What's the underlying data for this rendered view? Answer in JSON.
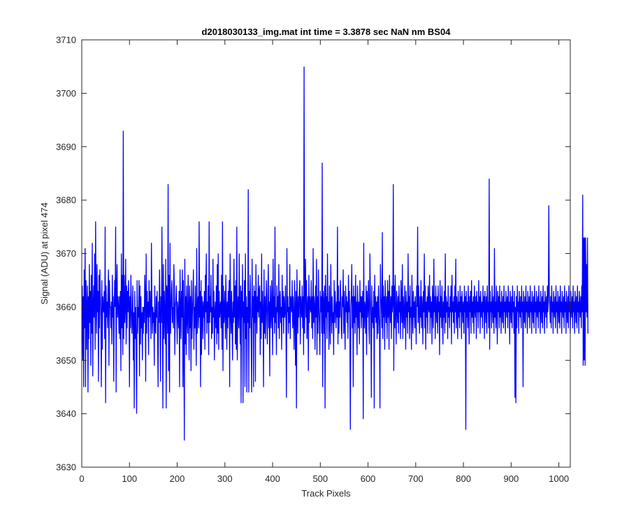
{
  "chart_data": {
    "type": "line",
    "title": "d2018030133_img.mat int time = 3.3878 sec  NaN nm BS04",
    "xlabel": "Track Pixels",
    "ylabel": "Signal (ADU) at pixel 474",
    "xlim": [
      0,
      1024
    ],
    "ylim": [
      3630,
      3710
    ],
    "xticks": [
      0,
      100,
      200,
      300,
      400,
      500,
      600,
      700,
      800,
      900,
      1000
    ],
    "yticks": [
      3630,
      3640,
      3650,
      3660,
      3670,
      3680,
      3690,
      3700,
      3710
    ],
    "grid": false,
    "legend": "none",
    "series": [
      {
        "color": "#0000ff",
        "x_start": 1,
        "x_step": 1,
        "values": [
          3664,
          3650,
          3662,
          3645,
          3667,
          3656,
          3671,
          3645,
          3665,
          3652,
          3660,
          3664,
          3644,
          3662,
          3654,
          3668,
          3657,
          3663,
          3649,
          3666,
          3655,
          3672,
          3647,
          3660,
          3664,
          3658,
          3670,
          3652,
          3676,
          3661,
          3655,
          3668,
          3659,
          3663,
          3646,
          3666,
          3656,
          3667,
          3662,
          3658,
          3645,
          3665,
          3652,
          3662,
          3660,
          3659,
          3663,
          3654,
          3675,
          3642,
          3664,
          3658,
          3661,
          3656,
          3663,
          3667,
          3649,
          3665,
          3660,
          3660,
          3656,
          3661,
          3653,
          3666,
          3658,
          3662,
          3646,
          3659,
          3665,
          3660,
          3675,
          3644,
          3663,
          3668,
          3658,
          3662,
          3660,
          3655,
          3662,
          3654,
          3663,
          3648,
          3670,
          3656,
          3666,
          3651,
          3693,
          3654,
          3666,
          3657,
          3660,
          3669,
          3653,
          3664,
          3656,
          3663,
          3659,
          3665,
          3661,
          3645,
          3662,
          3656,
          3666,
          3660,
          3655,
          3658,
          3664,
          3650,
          3659,
          3641,
          3663,
          3654,
          3660,
          3652,
          3640,
          3665,
          3655,
          3660,
          3658,
          3665,
          3647,
          3664,
          3653,
          3662,
          3656,
          3659,
          3650,
          3660,
          3655,
          3660,
          3657,
          3666,
          3662,
          3646,
          3670,
          3655,
          3663,
          3658,
          3661,
          3651,
          3665,
          3658,
          3663,
          3659,
          3654,
          3672,
          3661,
          3655,
          3660,
          3657,
          3659,
          3649,
          3664,
          3656,
          3655,
          3662,
          3658,
          3663,
          3654,
          3645,
          3661,
          3657,
          3667,
          3659,
          3646,
          3662,
          3657,
          3675,
          3660,
          3641,
          3668,
          3654,
          3663,
          3658,
          3653,
          3669,
          3641,
          3664,
          3662,
          3655,
          3683,
          3648,
          3666,
          3644,
          3672,
          3655,
          3658,
          3663,
          3665,
          3657,
          3660,
          3656,
          3668,
          3664,
          3651,
          3660,
          3661,
          3664,
          3658,
          3653,
          3661,
          3659,
          3656,
          3663,
          3645,
          3667,
          3660,
          3654,
          3663,
          3658,
          3667,
          3645,
          3665,
          3655,
          3635,
          3669,
          3653,
          3662,
          3651,
          3664,
          3658,
          3655,
          3666,
          3660,
          3650,
          3664,
          3656,
          3662,
          3648,
          3665,
          3654,
          3659,
          3662,
          3667,
          3652,
          3660,
          3656,
          3664,
          3657,
          3649,
          3671,
          3655,
          3661,
          3662,
          3656,
          3676,
          3658,
          3663,
          3645,
          3665,
          3651,
          3662,
          3660,
          3654,
          3661,
          3658,
          3663,
          3652,
          3666,
          3659,
          3670,
          3655,
          3661,
          3657,
          3664,
          3651,
          3676,
          3657,
          3662,
          3659,
          3666,
          3654,
          3660,
          3655,
          3669,
          3658,
          3663,
          3650,
          3659,
          3661,
          3656,
          3664,
          3653,
          3668,
          3655,
          3670,
          3652,
          3663,
          3658,
          3660,
          3661,
          3656,
          3666,
          3652,
          3676,
          3648,
          3664,
          3657,
          3659,
          3663,
          3654,
          3666,
          3660,
          3652,
          3661,
          3656,
          3663,
          3658,
          3665,
          3645,
          3670,
          3660,
          3655,
          3663,
          3658,
          3650,
          3661,
          3657,
          3669,
          3658,
          3664,
          3653,
          3665,
          3652,
          3675,
          3650,
          3660,
          3662,
          3656,
          3670,
          3659,
          3653,
          3664,
          3642,
          3663,
          3658,
          3668,
          3642,
          3661,
          3657,
          3665,
          3645,
          3670,
          3654,
          3662,
          3644,
          3660,
          3657,
          3682,
          3644,
          3663,
          3656,
          3666,
          3660,
          3654,
          3644,
          3669,
          3658,
          3662,
          3645,
          3664,
          3657,
          3663,
          3646,
          3668,
          3661,
          3655,
          3662,
          3659,
          3666,
          3658,
          3663,
          3664,
          3651,
          3661,
          3654,
          3670,
          3657,
          3663,
          3659,
          3645,
          3667,
          3655,
          3662,
          3654,
          3660,
          3665,
          3658,
          3653,
          3662,
          3668,
          3656,
          3661,
          3647,
          3664,
          3659,
          3656,
          3665,
          3660,
          3651,
          3669,
          3658,
          3662,
          3655,
          3675,
          3657,
          3660,
          3651,
          3664,
          3659,
          3662,
          3656,
          3668,
          3654,
          3661,
          3663,
          3657,
          3660,
          3652,
          3666,
          3658,
          3663,
          3655,
          3662,
          3658,
          3659,
          3664,
          3656,
          3643,
          3671,
          3659,
          3662,
          3655,
          3660,
          3657,
          3668,
          3654,
          3662,
          3661,
          3659,
          3665,
          3656,
          3662,
          3658,
          3652,
          3665,
          3660,
          3649,
          3663,
          3641,
          3667,
          3660,
          3655,
          3662,
          3658,
          3663,
          3665,
          3653,
          3662,
          3660,
          3658,
          3664,
          3656,
          3662,
          3651,
          3705,
          3655,
          3663,
          3669,
          3658,
          3665,
          3654,
          3660,
          3662,
          3648,
          3666,
          3657,
          3662,
          3660,
          3659,
          3665,
          3656,
          3662,
          3654,
          3671,
          3657,
          3662,
          3660,
          3652,
          3664,
          3658,
          3669,
          3651,
          3662,
          3655,
          3667,
          3660,
          3657,
          3651,
          3663,
          3659,
          3662,
          3655,
          3687,
          3645,
          3663,
          3661,
          3655,
          3664,
          3641,
          3666,
          3658,
          3662,
          3654,
          3670,
          3659,
          3661,
          3652,
          3664,
          3658,
          3653,
          3668,
          3660,
          3655,
          3662,
          3657,
          3659,
          3651,
          3665,
          3657,
          3663,
          3660,
          3656,
          3661,
          3658,
          3675,
          3653,
          3664,
          3655,
          3661,
          3658,
          3665,
          3662,
          3656,
          3654,
          3662,
          3660,
          3667,
          3655,
          3663,
          3658,
          3652,
          3664,
          3659,
          3662,
          3657,
          3661,
          3654,
          3666,
          3659,
          3663,
          3655,
          3637,
          3660,
          3662,
          3668,
          3656,
          3662,
          3645,
          3664,
          3657,
          3662,
          3655,
          3666,
          3658,
          3661,
          3651,
          3664,
          3660,
          3656,
          3661,
          3653,
          3665,
          3659,
          3662,
          3656,
          3662,
          3658,
          3663,
          3639,
          3672,
          3656,
          3661,
          3660,
          3655,
          3664,
          3651,
          3663,
          3658,
          3660,
          3665,
          3656,
          3653,
          3670,
          3662,
          3658,
          3643,
          3664,
          3657,
          3660,
          3656,
          3663,
          3641,
          3666,
          3658,
          3662,
          3657,
          3661,
          3654,
          3662,
          3655,
          3664,
          3659,
          3656,
          3641,
          3668,
          3662,
          3660,
          3656,
          3674,
          3654,
          3664,
          3658,
          3662,
          3652,
          3665,
          3660,
          3657,
          3662,
          3654,
          3665,
          3658,
          3663,
          3652,
          3666,
          3660,
          3657,
          3662,
          3654,
          3664,
          3659,
          3661,
          3683,
          3648,
          3664,
          3656,
          3666,
          3659,
          3653,
          3663,
          3660,
          3657,
          3662,
          3655,
          3664,
          3659,
          3661,
          3654,
          3665,
          3660,
          3657,
          3668,
          3654,
          3662,
          3659,
          3656,
          3664,
          3660,
          3652,
          3663,
          3658,
          3661,
          3655,
          3670,
          3659,
          3662,
          3654,
          3664,
          3658,
          3660,
          3652,
          3666,
          3660,
          3655,
          3663,
          3658,
          3661,
          3656,
          3662,
          3659,
          3653,
          3664,
          3660,
          3675,
          3657,
          3664,
          3659,
          3655,
          3662,
          3658,
          3665,
          3656,
          3662,
          3660,
          3653,
          3663,
          3659,
          3670,
          3656,
          3664,
          3652,
          3661,
          3658,
          3662,
          3655,
          3664,
          3660,
          3659,
          3666,
          3655,
          3662,
          3658,
          3661,
          3653,
          3664,
          3660,
          3656,
          3669,
          3659,
          3662,
          3654,
          3664,
          3660,
          3657,
          3662,
          3655,
          3664,
          3659,
          3661,
          3651,
          3665,
          3658,
          3662,
          3656,
          3664,
          3660,
          3653,
          3661,
          3658,
          3663,
          3655,
          3670,
          3657,
          3662,
          3659,
          3661,
          3654,
          3664,
          3658,
          3660,
          3656,
          3662,
          3659,
          3664,
          3653,
          3666,
          3659,
          3661,
          3657,
          3662,
          3655,
          3664,
          3659,
          3669,
          3656,
          3662,
          3660,
          3654,
          3663,
          3658,
          3661,
          3656,
          3664,
          3659,
          3662,
          3654,
          3663,
          3660,
          3657,
          3661,
          3655,
          3664,
          3659,
          3662,
          3637,
          3663,
          3658,
          3661,
          3656,
          3664,
          3660,
          3653,
          3662,
          3659,
          3663,
          3655,
          3665,
          3658,
          3661,
          3657,
          3662,
          3655,
          3664,
          3660,
          3658,
          3662,
          3654,
          3663,
          3659,
          3661,
          3656,
          3665,
          3659,
          3662,
          3655,
          3663,
          3660,
          3658,
          3661,
          3656,
          3664,
          3659,
          3662,
          3654,
          3663,
          3660,
          3657,
          3662,
          3655,
          3664,
          3659,
          3661,
          3656,
          3684,
          3652,
          3663,
          3659,
          3661,
          3656,
          3664,
          3660,
          3657,
          3662,
          3655,
          3671,
          3658,
          3661,
          3656,
          3664,
          3660,
          3653,
          3663,
          3659,
          3662,
          3656,
          3664,
          3658,
          3661,
          3655,
          3663,
          3660,
          3657,
          3662,
          3656,
          3664,
          3659,
          3661,
          3655,
          3663,
          3660,
          3658,
          3662,
          3656,
          3664,
          3659,
          3661,
          3653,
          3663,
          3660,
          3657,
          3662,
          3656,
          3664,
          3659,
          3661,
          3655,
          3663,
          3643,
          3660,
          3642,
          3662,
          3656,
          3664,
          3659,
          3661,
          3655,
          3663,
          3660,
          3658,
          3662,
          3656,
          3664,
          3659,
          3661,
          3645,
          3663,
          3660,
          3657,
          3662,
          3656,
          3664,
          3659,
          3661,
          3655,
          3663,
          3660,
          3658,
          3662,
          3656,
          3664,
          3659,
          3661,
          3655,
          3663,
          3660,
          3657,
          3662,
          3656,
          3664,
          3659,
          3661,
          3655,
          3663,
          3660,
          3658,
          3662,
          3656,
          3664,
          3659,
          3661,
          3655,
          3663,
          3660,
          3657,
          3662,
          3656,
          3664,
          3659,
          3661,
          3655,
          3663,
          3660,
          3658,
          3662,
          3656,
          3664,
          3659,
          3661,
          3679,
          3663,
          3660,
          3657,
          3662,
          3656,
          3664,
          3659,
          3661,
          3655,
          3663,
          3660,
          3658,
          3662,
          3656,
          3664,
          3659,
          3661,
          3655,
          3663,
          3660,
          3657,
          3662,
          3656,
          3664,
          3659,
          3661,
          3655,
          3663,
          3660,
          3658,
          3662,
          3656,
          3664,
          3659,
          3661,
          3655,
          3663,
          3660,
          3657,
          3662,
          3656,
          3664,
          3659,
          3661,
          3655,
          3663,
          3660,
          3658,
          3662,
          3656,
          3664,
          3659,
          3661,
          3655,
          3663,
          3660,
          3657,
          3662,
          3656,
          3664,
          3659,
          3661,
          3655,
          3663,
          3660,
          3658,
          3662,
          3656,
          3664,
          3659,
          3681,
          3649,
          3673,
          3650,
          3673,
          3649,
          3673,
          3659,
          3668,
          3658,
          3673,
          3655
        ]
      }
    ]
  }
}
